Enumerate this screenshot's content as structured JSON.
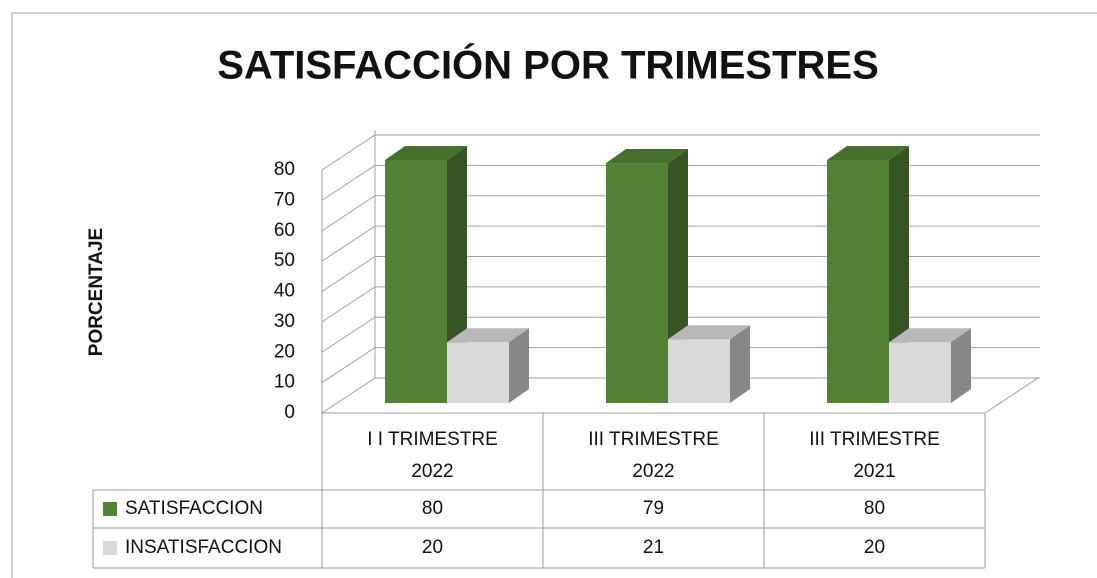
{
  "chart_data": {
    "type": "bar3d",
    "title": "SATISFACCIÓN POR TRIMESTRES",
    "y_label": "PORCENTAJE",
    "categories": [
      [
        "I I TRIMESTRE",
        "2022"
      ],
      [
        "III TRIMESTRE",
        "2022"
      ],
      [
        "III TRIMESTRE",
        "2021"
      ]
    ],
    "series": [
      {
        "name": "SATISFACCION",
        "color": "#548235",
        "values": [
          80,
          79,
          80
        ]
      },
      {
        "name": "INSATISFACCION",
        "color": "#d9d9d9",
        "values": [
          20,
          21,
          20
        ]
      }
    ],
    "ylim": [
      0,
      80
    ],
    "yticks": [
      0,
      10,
      20,
      30,
      40,
      50,
      60,
      70,
      80
    ],
    "grid": true
  }
}
